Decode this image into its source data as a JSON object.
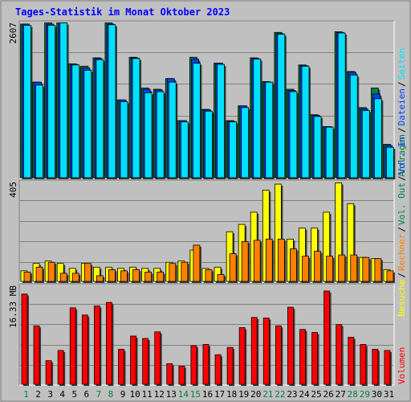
{
  "title": "Tages-Statistik im Monat Oktober 2023",
  "colors": {
    "background": "#C0C0C0",
    "title": "#0000FF",
    "anfragen": "#008040",
    "dateien": "#0040FF",
    "seiten": "#00E0FF",
    "besuche": "#FFFF00",
    "rechner": "#FF8000",
    "vol_in": "#0040FF",
    "vol_out": "#008040",
    "volumen": "#FF0000",
    "weekend_label": "#008040",
    "weekday_label": "#000000"
  },
  "panels": {
    "top": {
      "max_label": "2607",
      "legend": [
        "Anfragen",
        "/",
        "Dateien",
        "/",
        "Seiten"
      ]
    },
    "middle": {
      "max_label": "405",
      "legend": [
        "Besuche",
        "/",
        "Rechner",
        "/",
        "Vol. Out",
        "/",
        "Vol. In"
      ]
    },
    "bottom": {
      "max_label": "16.33 MB",
      "legend": [
        "Volumen"
      ]
    }
  },
  "chart_data": [
    {
      "type": "bar",
      "categories": [
        "1",
        "2",
        "3",
        "4",
        "5",
        "6",
        "7",
        "8",
        "9",
        "10",
        "11",
        "12",
        "13",
        "14",
        "15",
        "16",
        "17",
        "18",
        "19",
        "20",
        "21",
        "22",
        "23",
        "24",
        "25",
        "26",
        "27",
        "28",
        "29",
        "30",
        "31"
      ],
      "weekend_days": [
        1,
        7,
        8,
        14,
        15,
        21,
        22,
        28,
        29
      ],
      "ylim": [
        0,
        2607
      ],
      "series": [
        {
          "name": "Anfragen",
          "values": [
            2580,
            1600,
            2600,
            2600,
            1910,
            1870,
            2010,
            2600,
            1300,
            2020,
            1500,
            1480,
            1660,
            950,
            2020,
            1140,
            1920,
            950,
            1200,
            2010,
            1610,
            2440,
            1480,
            1890,
            1050,
            850,
            2450,
            1780,
            1170,
            1500,
            550
          ]
        },
        {
          "name": "Dateien",
          "values": [
            2580,
            1600,
            2580,
            2600,
            1900,
            1840,
            2000,
            2580,
            1300,
            2010,
            1480,
            1470,
            1660,
            950,
            1990,
            1130,
            1920,
            940,
            1200,
            2000,
            1600,
            2420,
            1460,
            1880,
            1040,
            850,
            2440,
            1770,
            1150,
            1400,
            530
          ]
        },
        {
          "name": "Seiten",
          "values": [
            2560,
            1550,
            2560,
            2600,
            1890,
            1800,
            1980,
            2570,
            1270,
            2000,
            1420,
            1440,
            1600,
            930,
            1920,
            1110,
            1900,
            930,
            1170,
            1990,
            1600,
            2410,
            1440,
            1870,
            1020,
            840,
            2430,
            1720,
            1120,
            1320,
            500
          ]
        }
      ]
    },
    {
      "type": "bar",
      "categories": [
        "1",
        "2",
        "3",
        "4",
        "5",
        "6",
        "7",
        "8",
        "9",
        "10",
        "11",
        "12",
        "13",
        "14",
        "15",
        "16",
        "17",
        "18",
        "19",
        "20",
        "21",
        "22",
        "23",
        "24",
        "25",
        "26",
        "27",
        "28",
        "29",
        "30",
        "31"
      ],
      "ylim": [
        0,
        405
      ],
      "series": [
        {
          "name": "Besuche",
          "values": [
            40,
            70,
            80,
            70,
            50,
            70,
            55,
            55,
            50,
            55,
            50,
            50,
            75,
            80,
            125,
            50,
            55,
            200,
            230,
            280,
            370,
            395,
            170,
            215,
            215,
            280,
            400,
            315,
            95,
            90,
            45
          ]
        },
        {
          "name": "Rechner",
          "values": [
            35,
            55,
            75,
            30,
            30,
            70,
            20,
            45,
            40,
            45,
            35,
            35,
            70,
            75,
            145,
            45,
            25,
            110,
            160,
            165,
            170,
            170,
            130,
            100,
            120,
            100,
            105,
            105,
            95,
            90,
            40
          ]
        }
      ]
    },
    {
      "type": "bar",
      "categories": [
        "1",
        "2",
        "3",
        "4",
        "5",
        "6",
        "7",
        "8",
        "9",
        "10",
        "11",
        "12",
        "13",
        "14",
        "15",
        "16",
        "17",
        "18",
        "19",
        "20",
        "21",
        "22",
        "23",
        "24",
        "25",
        "26",
        "27",
        "28",
        "29",
        "30",
        "31"
      ],
      "ylim": [
        0,
        16.33
      ],
      "series": [
        {
          "name": "Volumen",
          "values": [
            14.9,
            9.6,
            3.8,
            5.5,
            12.6,
            11.4,
            12.9,
            13.5,
            5.7,
            7.9,
            7.5,
            8.6,
            3.3,
            2.9,
            6.3,
            6.5,
            4.8,
            6.0,
            9.3,
            11.0,
            10.9,
            9.6,
            12.7,
            9.0,
            8.5,
            15.4,
            9.8,
            7.7,
            6.5,
            5.7,
            5.5
          ]
        }
      ]
    }
  ]
}
